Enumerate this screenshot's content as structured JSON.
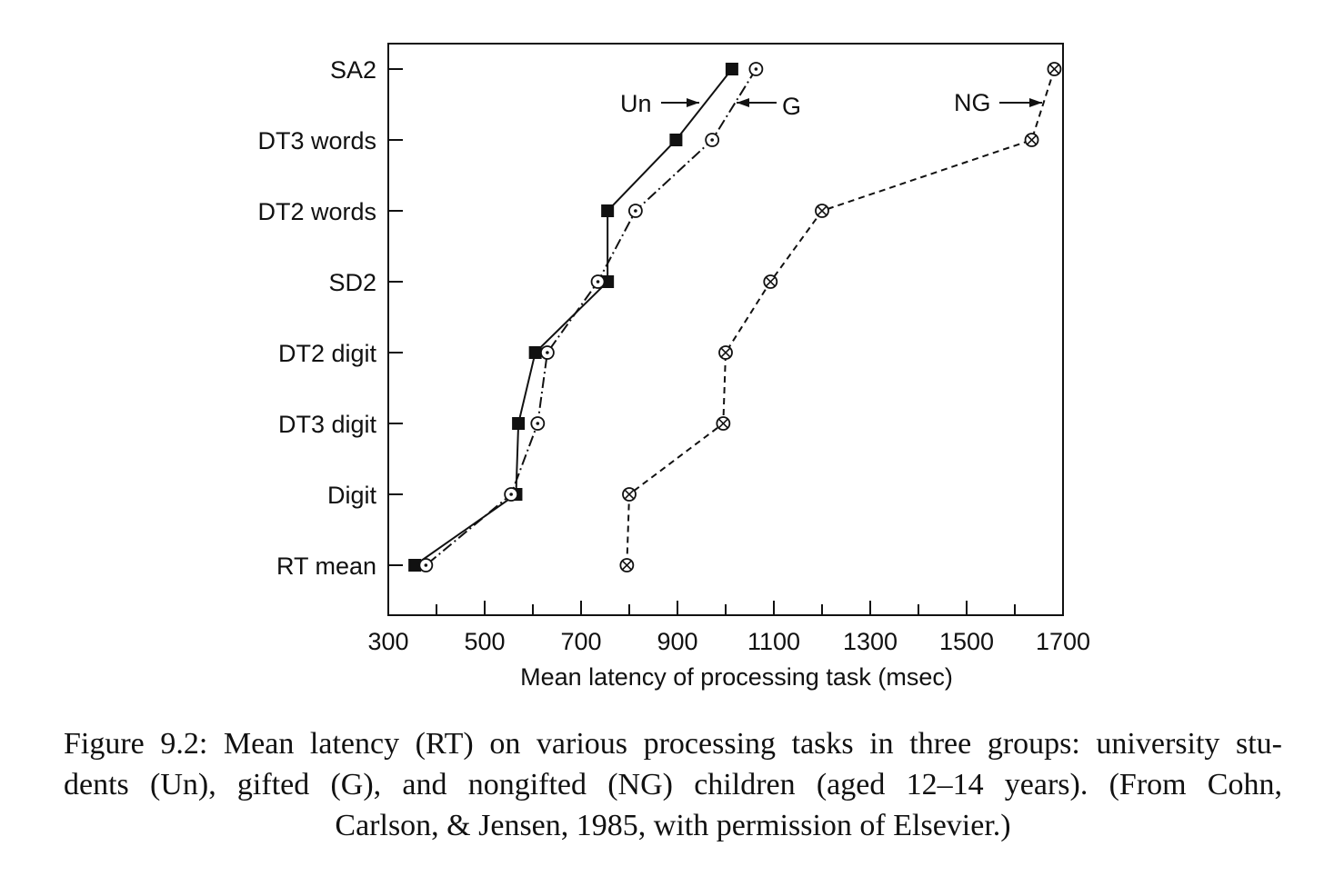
{
  "chart_data": {
    "type": "line",
    "xlabel": "Mean latency of processing task (msec)",
    "xlim": [
      300,
      1700
    ],
    "x_ticks": [
      "300",
      "500",
      "700",
      "900",
      "1100",
      "1300",
      "1500",
      "1700"
    ],
    "categories": [
      "SA2",
      "DT3 words",
      "DT2 words",
      "SD2",
      "DT2 digit",
      "DT3 digit",
      "Digit",
      "RT mean"
    ],
    "series": [
      {
        "name": "Un",
        "marker": "filled-square",
        "line_style": "solid",
        "values": [
          1013,
          897,
          755,
          755,
          605,
          570,
          565,
          355
        ]
      },
      {
        "name": "G",
        "marker": "circled-dot",
        "line_style": "dash-dot",
        "values": [
          1063,
          972,
          813,
          735,
          630,
          610,
          555,
          378
        ]
      },
      {
        "name": "NG",
        "marker": "circled-cross",
        "line_style": "dashed",
        "values": [
          1682,
          1635,
          1200,
          1093,
          1000,
          995,
          800,
          795
        ]
      }
    ],
    "annotations": [
      {
        "text": "Un",
        "arrow": "right"
      },
      {
        "text": "G",
        "arrow": "left"
      },
      {
        "text": "NG",
        "arrow": "right"
      }
    ],
    "grid": false,
    "legend": "none",
    "colors": {
      "ink": "#111111",
      "background": "#ffffff"
    }
  },
  "caption": {
    "line1": "Figure 9.2:  Mean latency (RT) on various processing tasks in three groups: university stu-",
    "line2": "dents (Un), gifted (G), and nongifted (NG) children (aged 12–14 years). (From Cohn,",
    "line3": "Carlson, & Jensen, 1985, with permission of Elsevier.)"
  }
}
